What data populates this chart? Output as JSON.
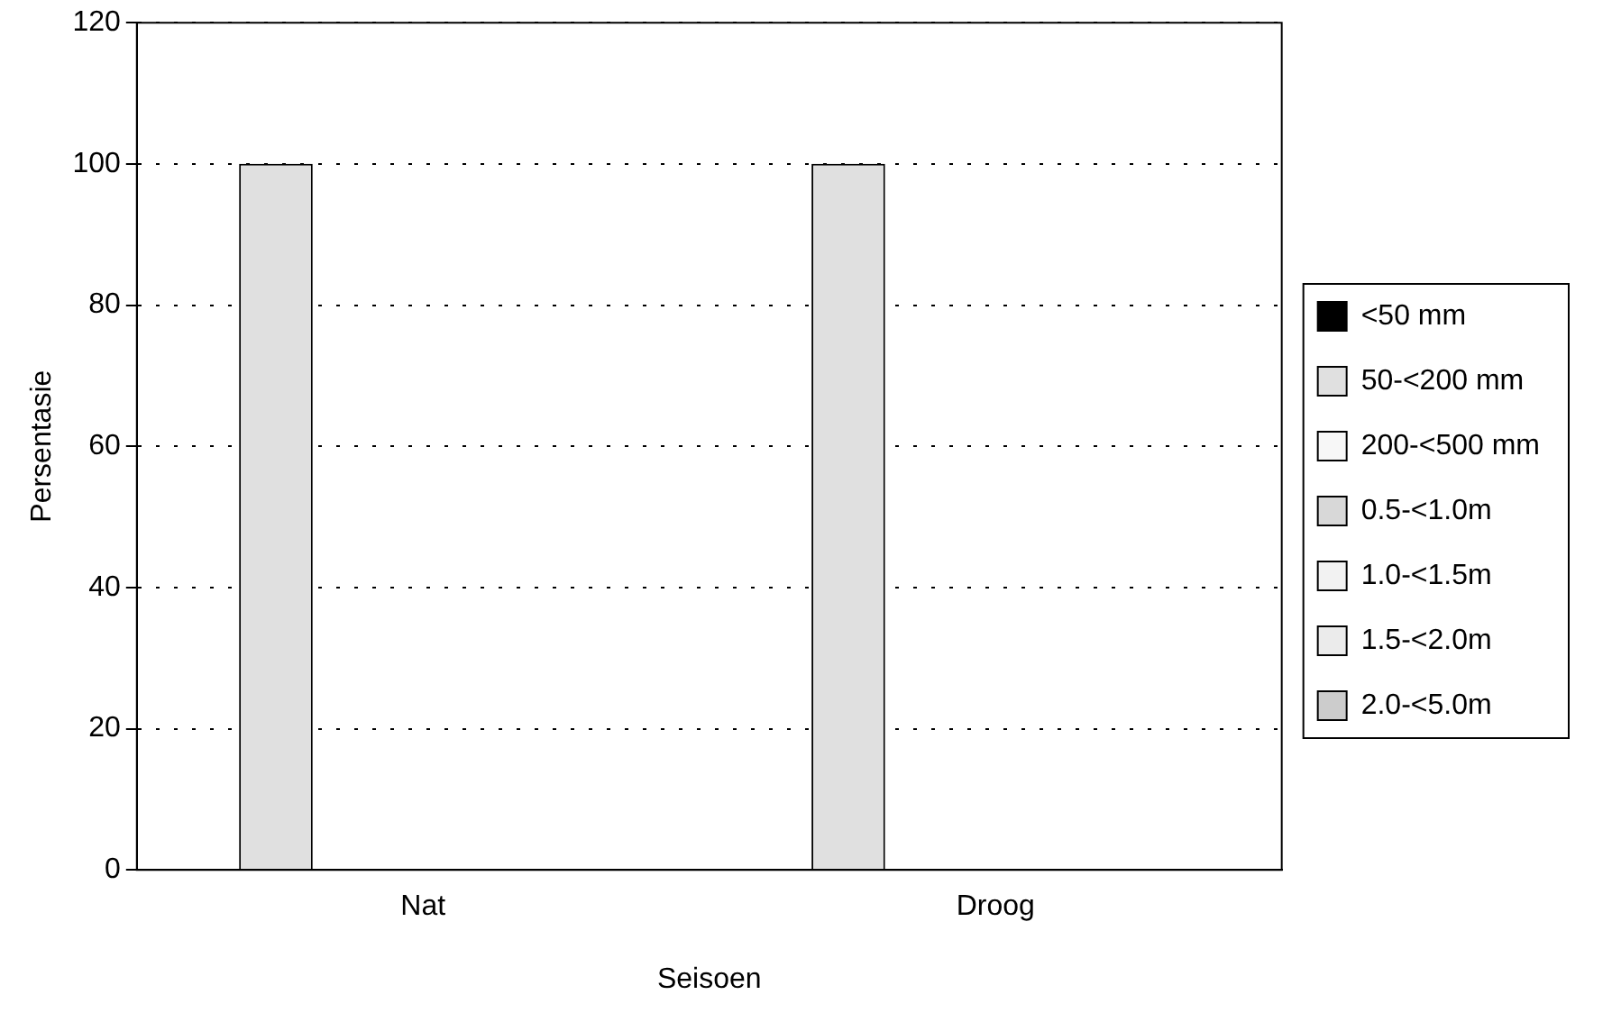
{
  "chart_data": {
    "type": "bar",
    "xlabel": "Seisoen",
    "ylabel": "Persentasie",
    "categories": [
      "Nat",
      "Droog"
    ],
    "series": [
      {
        "name": "<50 mm",
        "color": "#000000",
        "values": [
          0,
          0
        ]
      },
      {
        "name": "50-<200 mm",
        "color": "#e0e0e0",
        "values": [
          100,
          100
        ]
      },
      {
        "name": "200-<500 mm",
        "color": "#f7f7f7",
        "values": [
          0,
          0
        ]
      },
      {
        "name": "0.5-<1.0m",
        "color": "#d8d8d8",
        "values": [
          0,
          0
        ]
      },
      {
        "name": "1.0-<1.5m",
        "color": "#f2f2f2",
        "values": [
          0,
          0
        ]
      },
      {
        "name": "1.5-<2.0m",
        "color": "#ebebeb",
        "values": [
          0,
          0
        ]
      },
      {
        "name": "2.0-<5.0m",
        "color": "#cccccc",
        "values": [
          0,
          0
        ]
      }
    ],
    "ylim": [
      0,
      120
    ],
    "yticks": [
      0,
      20,
      40,
      60,
      80,
      100,
      120
    ],
    "grid": "y",
    "legend": "right"
  }
}
